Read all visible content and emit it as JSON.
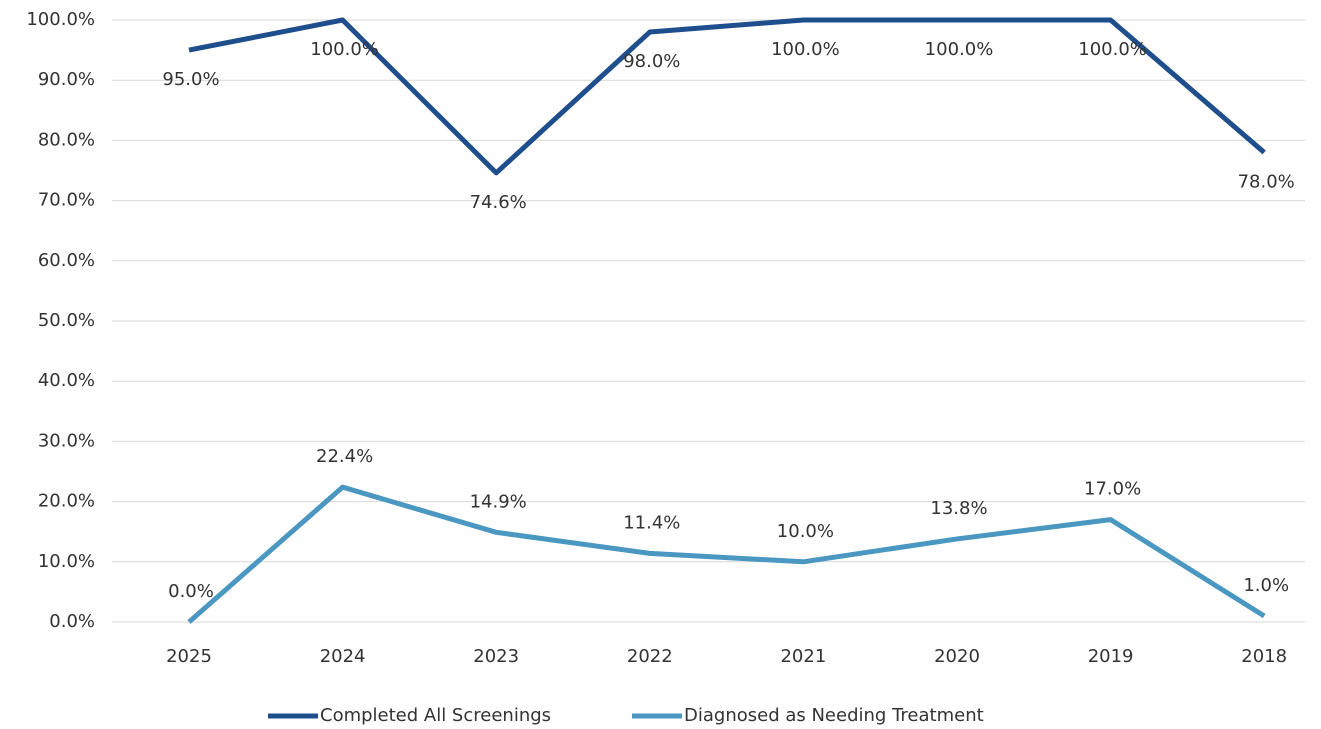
{
  "chart_data": {
    "type": "line",
    "categories": [
      "2025",
      "2024",
      "2023",
      "2022",
      "2021",
      "2020",
      "2019",
      "2018"
    ],
    "series": [
      {
        "name": "Completed All Screenings",
        "color": "#1f4e8c",
        "values": [
          95.0,
          100.0,
          74.6,
          98.0,
          100.0,
          100.0,
          100.0,
          78.0
        ],
        "value_labels": [
          "95.0%",
          "100.0%",
          "74.6%",
          "98.0%",
          "100.0%",
          "100.0%",
          "100.0%",
          "78.0%"
        ]
      },
      {
        "name": "Diagnosed as Needing Treatment",
        "color": "#4a97c2",
        "values": [
          0.0,
          22.4,
          14.9,
          11.4,
          10.0,
          13.8,
          17.0,
          1.0
        ],
        "value_labels": [
          "0.0%",
          "22.4%",
          "14.9%",
          "11.4%",
          "10.0%",
          "13.8%",
          "17.0%",
          "1.0%"
        ]
      }
    ],
    "ylim": [
      0,
      100
    ],
    "yticks": [
      {
        "value": 0,
        "label": "0.0%"
      },
      {
        "value": 10,
        "label": "10.0%"
      },
      {
        "value": 20,
        "label": "20.0%"
      },
      {
        "value": 30,
        "label": "30.0%"
      },
      {
        "value": 40,
        "label": "40.0%"
      },
      {
        "value": 50,
        "label": "50.0%"
      },
      {
        "value": 60,
        "label": "60.0%"
      },
      {
        "value": 70,
        "label": "70.0%"
      },
      {
        "value": 80,
        "label": "80.0%"
      },
      {
        "value": 90,
        "label": "90.0%"
      },
      {
        "value": 100,
        "label": "100.0%"
      }
    ],
    "grid": true,
    "legend": "bottom"
  }
}
